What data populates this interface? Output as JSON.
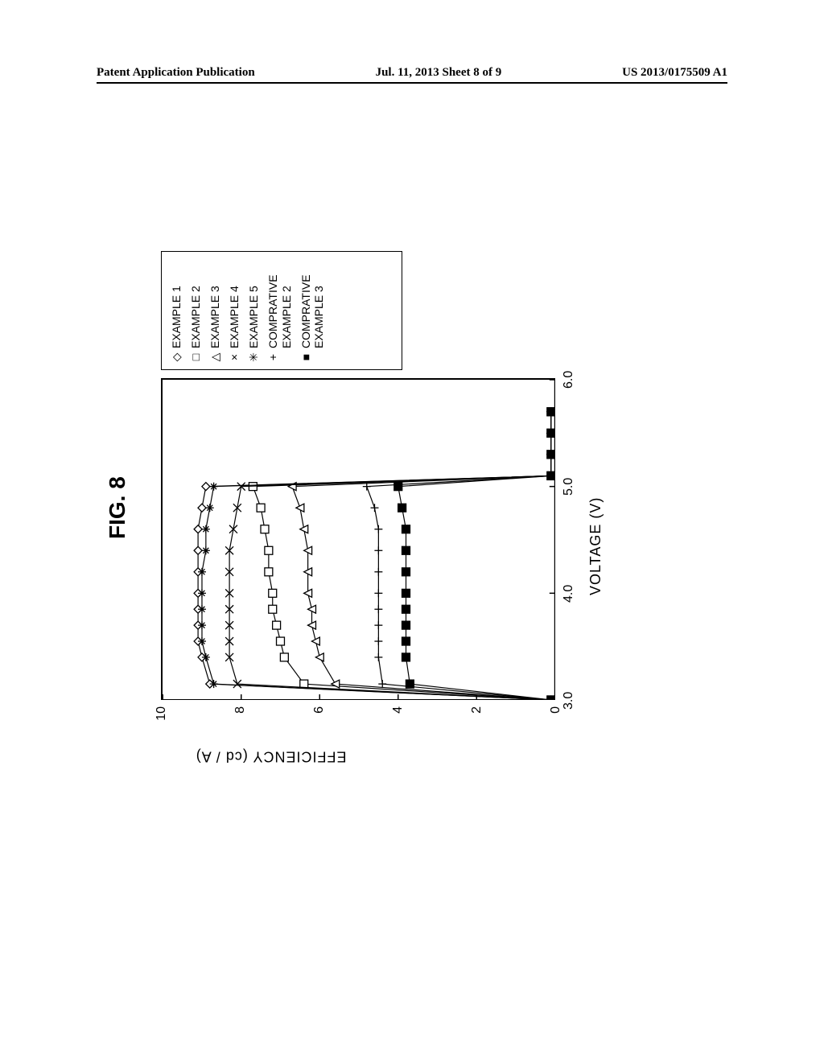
{
  "header": {
    "left": "Patent Application Publication",
    "mid": "Jul. 11, 2013   Sheet 8 of 9",
    "right": "US 2013/0175509 A1"
  },
  "figure": {
    "title": "FIG.  8",
    "xlabel": "VOLTAGE (V)",
    "ylabel": "EFFICIENCY (cd / A)",
    "xlim": [
      3.0,
      6.0
    ],
    "ylim": [
      0,
      10
    ],
    "xticks": [
      3.0,
      4.0,
      5.0,
      6.0
    ],
    "xtick_labels": [
      "3.0",
      "4.0",
      "5.0",
      "6.0"
    ],
    "yticks": [
      0,
      2,
      4,
      6,
      8,
      10
    ],
    "ytick_labels": [
      "0",
      "2",
      "4",
      "6",
      "8",
      "10"
    ],
    "background_color": "#ffffff",
    "axis_color": "#000000",
    "line_color": "#000000",
    "line_width": 1.2,
    "marker_stroke": "#000000",
    "marker_size": 5,
    "label_fontsize": 18,
    "tick_fontsize": 16,
    "title_fontsize": 28,
    "series": [
      {
        "name": "EXAMPLE 1",
        "marker": "diamond",
        "x": [
          3.0,
          3.15,
          3.4,
          3.55,
          3.7,
          3.85,
          4.0,
          4.2,
          4.4,
          4.6,
          4.8,
          5.0,
          5.1,
          5.3,
          5.5,
          5.7
        ],
        "y": [
          0.1,
          8.8,
          9.0,
          9.1,
          9.1,
          9.1,
          9.1,
          9.1,
          9.1,
          9.1,
          9.0,
          8.9,
          0.1,
          0.1,
          0.1,
          0.1
        ]
      },
      {
        "name": "EXAMPLE 2",
        "marker": "square",
        "x": [
          3.0,
          3.15,
          3.4,
          3.55,
          3.7,
          3.85,
          4.0,
          4.2,
          4.4,
          4.6,
          4.8,
          5.0,
          5.1,
          5.3,
          5.5,
          5.7
        ],
        "y": [
          0.1,
          6.4,
          6.9,
          7.0,
          7.1,
          7.2,
          7.2,
          7.3,
          7.3,
          7.4,
          7.5,
          7.7,
          0.1,
          0.1,
          0.1,
          0.1
        ]
      },
      {
        "name": "EXAMPLE 3",
        "marker": "triangle",
        "x": [
          3.0,
          3.15,
          3.4,
          3.55,
          3.7,
          3.85,
          4.0,
          4.2,
          4.4,
          4.6,
          4.8,
          5.0,
          5.1,
          5.3,
          5.5,
          5.7
        ],
        "y": [
          0.1,
          5.6,
          6.0,
          6.1,
          6.2,
          6.2,
          6.3,
          6.3,
          6.3,
          6.4,
          6.5,
          6.7,
          0.1,
          0.1,
          0.1,
          0.1
        ]
      },
      {
        "name": "EXAMPLE 4",
        "marker": "x",
        "x": [
          3.0,
          3.15,
          3.4,
          3.55,
          3.7,
          3.85,
          4.0,
          4.2,
          4.4,
          4.6,
          4.8,
          5.0,
          5.1,
          5.3,
          5.5,
          5.7
        ],
        "y": [
          0.1,
          8.1,
          8.3,
          8.3,
          8.3,
          8.3,
          8.3,
          8.3,
          8.3,
          8.2,
          8.1,
          8.0,
          0.1,
          0.1,
          0.1,
          0.1
        ]
      },
      {
        "name": "EXAMPLE 5",
        "marker": "asterisk",
        "x": [
          3.0,
          3.15,
          3.4,
          3.55,
          3.7,
          3.85,
          4.0,
          4.2,
          4.4,
          4.6,
          4.8,
          5.0,
          5.1,
          5.3,
          5.5,
          5.7
        ],
        "y": [
          0.1,
          8.7,
          8.9,
          9.0,
          9.0,
          9.0,
          9.0,
          9.0,
          8.9,
          8.9,
          8.8,
          8.7,
          0.1,
          0.1,
          0.1,
          0.1
        ]
      },
      {
        "name": "COMPRATIVE EXAMPLE 2",
        "marker": "plus",
        "x": [
          3.0,
          3.15,
          3.4,
          3.55,
          3.7,
          3.85,
          4.0,
          4.2,
          4.4,
          4.6,
          4.8,
          5.0,
          5.1,
          5.3,
          5.5,
          5.7
        ],
        "y": [
          0.1,
          4.4,
          4.5,
          4.5,
          4.5,
          4.5,
          4.5,
          4.5,
          4.5,
          4.5,
          4.6,
          4.8,
          0.1,
          0.1,
          0.1,
          0.1
        ]
      },
      {
        "name": "COMPRATIVE EXAMPLE 3",
        "marker": "filled-square",
        "x": [
          3.0,
          3.15,
          3.4,
          3.55,
          3.7,
          3.85,
          4.0,
          4.2,
          4.4,
          4.6,
          4.8,
          5.0,
          5.1,
          5.3,
          5.5,
          5.7
        ],
        "y": [
          0.1,
          3.7,
          3.8,
          3.8,
          3.8,
          3.8,
          3.8,
          3.8,
          3.8,
          3.8,
          3.9,
          4.0,
          0.1,
          0.1,
          0.1,
          0.1
        ]
      }
    ],
    "legend": {
      "position": "right",
      "border_color": "#000000"
    }
  }
}
